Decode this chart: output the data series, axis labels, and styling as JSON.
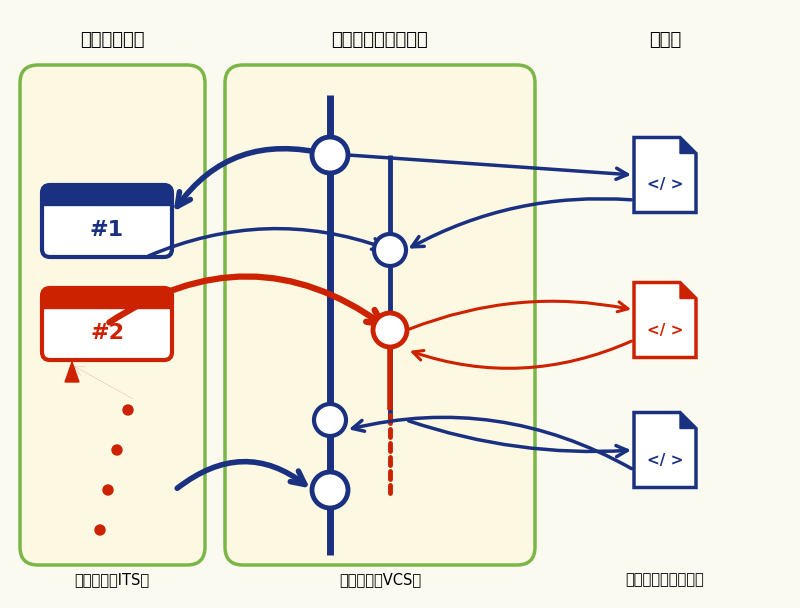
{
  "bg_color": "#fafaf0",
  "panel_bg": "#fdf8e1",
  "panel_border": "#7ab648",
  "blue_color": "#1a3080",
  "red_color": "#cc2200",
  "label_its": "共同所有（ITS）",
  "label_vcs": "共同所有（VCS）",
  "label_dev": "個別所有（開発者）",
  "header_task": "タスク・バグ",
  "header_branch": "ブランチとコミット",
  "header_code": "コード",
  "ticket1": "#1",
  "ticket2": "#2"
}
